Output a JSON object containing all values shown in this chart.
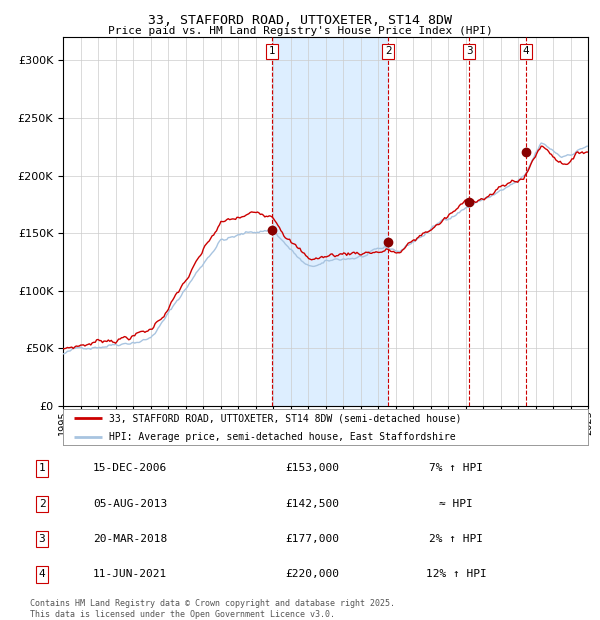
{
  "title_line1": "33, STAFFORD ROAD, UTTOXETER, ST14 8DW",
  "title_line2": "Price paid vs. HM Land Registry's House Price Index (HPI)",
  "ylim": [
    0,
    320000
  ],
  "yticks": [
    0,
    50000,
    100000,
    150000,
    200000,
    250000,
    300000
  ],
  "ytick_labels": [
    "£0",
    "£50K",
    "£100K",
    "£150K",
    "£200K",
    "£250K",
    "£300K"
  ],
  "x_start_year": 1995,
  "x_end_year": 2025,
  "line_color_hpi": "#a8c4e0",
  "line_color_price": "#cc0000",
  "dot_color": "#880000",
  "shade_color": "#ddeeff",
  "grid_color": "#cccccc",
  "dashed_color": "#cc0000",
  "bg_color": "#ffffff",
  "transactions": [
    {
      "num": 1,
      "date": "15-DEC-2006",
      "price": 153000,
      "year": 2006.96
    },
    {
      "num": 2,
      "date": "05-AUG-2013",
      "price": 142500,
      "year": 2013.59
    },
    {
      "num": 3,
      "date": "20-MAR-2018",
      "price": 177000,
      "year": 2018.22
    },
    {
      "num": 4,
      "date": "11-JUN-2021",
      "price": 220000,
      "year": 2021.44
    }
  ],
  "legend_label_price": "33, STAFFORD ROAD, UTTOXETER, ST14 8DW (semi-detached house)",
  "legend_label_hpi": "HPI: Average price, semi-detached house, East Staffordshire",
  "footnote": "Contains HM Land Registry data © Crown copyright and database right 2025.\nThis data is licensed under the Open Government Licence v3.0.",
  "table_rows": [
    [
      "1",
      "15-DEC-2006",
      "£153,000",
      "7% ↑ HPI"
    ],
    [
      "2",
      "05-AUG-2013",
      "£142,500",
      "≈ HPI"
    ],
    [
      "3",
      "20-MAR-2018",
      "£177,000",
      "2% ↑ HPI"
    ],
    [
      "4",
      "11-JUN-2021",
      "£220,000",
      "12% ↑ HPI"
    ]
  ]
}
